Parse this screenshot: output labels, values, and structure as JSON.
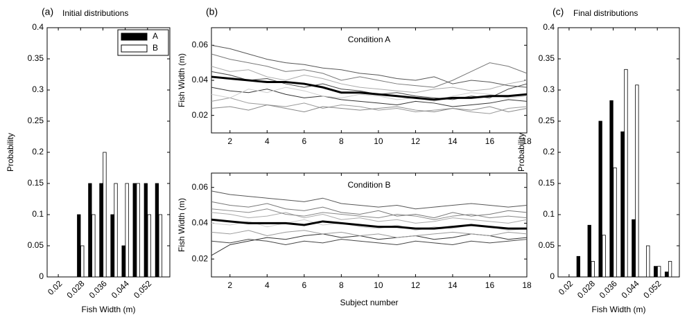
{
  "chart_data": [
    {
      "type": "bar",
      "panel_label": "(a)",
      "title": "Initial distributions",
      "xlabel": "Fish Width (m)",
      "ylabel": "Probability",
      "x": [
        0.028,
        0.032,
        0.036,
        0.04,
        0.044,
        0.048,
        0.052,
        0.056
      ],
      "series": [
        {
          "name": "A",
          "color": "#000000",
          "values": [
            0.1,
            0.15,
            0.15,
            0.1,
            0.05,
            0.15,
            0.15,
            0.15
          ]
        },
        {
          "name": "B",
          "color": "#ffffff",
          "values": [
            0.05,
            0.1,
            0.2,
            0.15,
            0.15,
            0.15,
            0.1,
            0.1
          ]
        }
      ],
      "xlim": [
        0.016,
        0.06
      ],
      "xticks": [
        0.02,
        0.028,
        0.036,
        0.044,
        0.052
      ],
      "ylim": [
        0,
        0.4
      ],
      "yticks": [
        0,
        0.05,
        0.1,
        0.15,
        0.2,
        0.25,
        0.3,
        0.35,
        0.4
      ],
      "legend": "upper right"
    },
    {
      "type": "line",
      "panel_label": "(b)",
      "annotation": "Condition A",
      "ylabel": "Fish Width (m)",
      "x": [
        1,
        2,
        3,
        4,
        5,
        6,
        7,
        8,
        9,
        10,
        11,
        12,
        13,
        14,
        15,
        16,
        17,
        18
      ],
      "series": [
        {
          "color": "#777777",
          "values": [
            0.055,
            0.052,
            0.05,
            0.048,
            0.045,
            0.046,
            0.044,
            0.04,
            0.042,
            0.04,
            0.038,
            0.037,
            0.036,
            0.04,
            0.045,
            0.05,
            0.048,
            0.044
          ]
        },
        {
          "color": "#aaaaaa",
          "values": [
            0.048,
            0.045,
            0.046,
            0.042,
            0.04,
            0.043,
            0.041,
            0.038,
            0.036,
            0.035,
            0.034,
            0.033,
            0.035,
            0.036,
            0.034,
            0.035,
            0.038,
            0.04
          ]
        },
        {
          "color": "#333333",
          "values": [
            0.036,
            0.034,
            0.033,
            0.035,
            0.032,
            0.03,
            0.031,
            0.029,
            0.028,
            0.027,
            0.026,
            0.028,
            0.027,
            0.025,
            0.026,
            0.027,
            0.029,
            0.028
          ]
        },
        {
          "color": "#999999",
          "values": [
            0.028,
            0.03,
            0.027,
            0.026,
            0.025,
            0.027,
            0.024,
            0.026,
            0.025,
            0.023,
            0.024,
            0.022,
            0.023,
            0.024,
            0.022,
            0.021,
            0.024,
            0.025
          ]
        },
        {
          "color": "#555555",
          "values": [
            0.06,
            0.058,
            0.055,
            0.052,
            0.05,
            0.049,
            0.047,
            0.046,
            0.044,
            0.043,
            0.041,
            0.04,
            0.042,
            0.038,
            0.04,
            0.039,
            0.037,
            0.036
          ]
        },
        {
          "color": "#cccccc",
          "values": [
            0.032,
            0.03,
            0.035,
            0.033,
            0.036,
            0.034,
            0.031,
            0.03,
            0.032,
            0.031,
            0.029,
            0.03,
            0.028,
            0.031,
            0.033,
            0.032,
            0.03,
            0.031
          ]
        },
        {
          "color": "#444444",
          "values": [
            0.045,
            0.043,
            0.04,
            0.041,
            0.038,
            0.036,
            0.038,
            0.035,
            0.034,
            0.032,
            0.033,
            0.031,
            0.03,
            0.029,
            0.031,
            0.03,
            0.035,
            0.038
          ]
        },
        {
          "color": "#888888",
          "values": [
            0.024,
            0.025,
            0.023,
            0.026,
            0.024,
            0.022,
            0.025,
            0.024,
            0.023,
            0.024,
            0.025,
            0.023,
            0.022,
            0.024,
            0.023,
            0.025,
            0.022,
            0.024
          ]
        },
        {
          "color": "#000000",
          "linewidth": 3,
          "values": [
            0.042,
            0.041,
            0.04,
            0.039,
            0.039,
            0.038,
            0.036,
            0.033,
            0.033,
            0.032,
            0.031,
            0.03,
            0.029,
            0.03,
            0.03,
            0.031,
            0.031,
            0.032
          ]
        }
      ],
      "xlim": [
        1,
        18
      ],
      "xticks": [
        2,
        4,
        6,
        8,
        10,
        12,
        14,
        16,
        18
      ],
      "ylim": [
        0.01,
        0.07
      ],
      "yticks": [
        0.02,
        0.04,
        0.06
      ]
    },
    {
      "type": "line",
      "annotation": "Condition B",
      "ylabel": "Fish Width (m)",
      "xlabel": "Subject number",
      "x": [
        1,
        2,
        3,
        4,
        5,
        6,
        7,
        8,
        9,
        10,
        11,
        12,
        13,
        14,
        15,
        16,
        17,
        18
      ],
      "series": [
        {
          "color": "#777777",
          "values": [
            0.052,
            0.05,
            0.049,
            0.051,
            0.048,
            0.047,
            0.049,
            0.046,
            0.045,
            0.047,
            0.044,
            0.045,
            0.043,
            0.046,
            0.044,
            0.045,
            0.047,
            0.046
          ]
        },
        {
          "color": "#aaaaaa",
          "values": [
            0.046,
            0.045,
            0.043,
            0.044,
            0.046,
            0.043,
            0.045,
            0.042,
            0.043,
            0.041,
            0.042,
            0.04,
            0.041,
            0.043,
            0.042,
            0.041,
            0.04,
            0.042
          ]
        },
        {
          "color": "#333333",
          "values": [
            0.022,
            0.028,
            0.03,
            0.032,
            0.031,
            0.033,
            0.034,
            0.032,
            0.033,
            0.031,
            0.032,
            0.033,
            0.031,
            0.032,
            0.034,
            0.033,
            0.031,
            0.032
          ]
        },
        {
          "color": "#999999",
          "values": [
            0.035,
            0.034,
            0.036,
            0.033,
            0.035,
            0.036,
            0.034,
            0.035,
            0.033,
            0.034,
            0.032,
            0.033,
            0.034,
            0.035,
            0.034,
            0.033,
            0.035,
            0.034
          ]
        },
        {
          "color": "#555555",
          "values": [
            0.058,
            0.056,
            0.055,
            0.054,
            0.053,
            0.052,
            0.054,
            0.051,
            0.05,
            0.049,
            0.05,
            0.048,
            0.049,
            0.05,
            0.051,
            0.05,
            0.049,
            0.05
          ]
        },
        {
          "color": "#cccccc",
          "values": [
            0.04,
            0.039,
            0.041,
            0.038,
            0.04,
            0.042,
            0.039,
            0.04,
            0.038,
            0.037,
            0.039,
            0.036,
            0.038,
            0.037,
            0.039,
            0.038,
            0.036,
            0.037
          ]
        },
        {
          "color": "#444444",
          "values": [
            0.03,
            0.029,
            0.031,
            0.03,
            0.028,
            0.03,
            0.029,
            0.031,
            0.03,
            0.029,
            0.028,
            0.03,
            0.029,
            0.028,
            0.03,
            0.029,
            0.03,
            0.031
          ]
        },
        {
          "color": "#888888",
          "values": [
            0.048,
            0.047,
            0.046,
            0.048,
            0.045,
            0.044,
            0.046,
            0.045,
            0.044,
            0.043,
            0.045,
            0.044,
            0.042,
            0.044,
            0.045,
            0.043,
            0.044,
            0.043
          ]
        },
        {
          "color": "#000000",
          "linewidth": 3,
          "values": [
            0.042,
            0.041,
            0.04,
            0.04,
            0.04,
            0.039,
            0.041,
            0.04,
            0.039,
            0.038,
            0.038,
            0.037,
            0.037,
            0.038,
            0.039,
            0.038,
            0.037,
            0.037
          ]
        }
      ],
      "xlim": [
        1,
        18
      ],
      "xticks": [
        2,
        4,
        6,
        8,
        10,
        12,
        14,
        16,
        18
      ],
      "ylim": [
        0.01,
        0.068
      ],
      "yticks": [
        0.02,
        0.04,
        0.06
      ]
    },
    {
      "type": "bar",
      "panel_label": "(c)",
      "title": "Final distributions",
      "xlabel": "Fish Width (m)",
      "ylabel": "Probability",
      "x": [
        0.024,
        0.028,
        0.032,
        0.036,
        0.04,
        0.044,
        0.048,
        0.052,
        0.056
      ],
      "series": [
        {
          "color": "#000000",
          "values": [
            0.033,
            0.083,
            0.25,
            0.283,
            0.233,
            0.092,
            0,
            0.017,
            0.008
          ]
        },
        {
          "color": "#ffffff",
          "values": [
            0,
            0.025,
            0.067,
            0.175,
            0.333,
            0.308,
            0.05,
            0.017,
            0.025
          ]
        }
      ],
      "xlim": [
        0.016,
        0.06
      ],
      "xticks": [
        0.02,
        0.028,
        0.036,
        0.044,
        0.052
      ],
      "ylim": [
        0,
        0.4
      ],
      "yticks": [
        0,
        0.05,
        0.1,
        0.15,
        0.2,
        0.25,
        0.3,
        0.35,
        0.4
      ]
    }
  ]
}
